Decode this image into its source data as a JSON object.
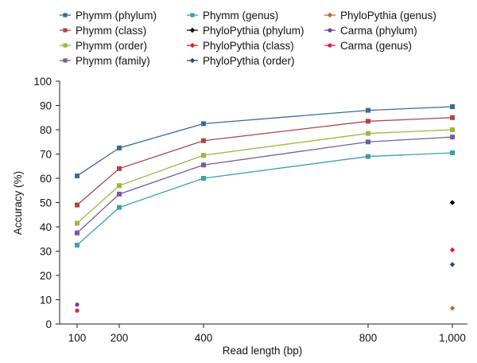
{
  "chart_data": {
    "type": "line",
    "xlabel": "Read length (bp)",
    "ylabel": "Accuracy (%)",
    "x": [
      100,
      200,
      400,
      800,
      1000
    ],
    "x_tick_labels": [
      "100",
      "200",
      "400",
      "800",
      "1,000"
    ],
    "ylim": [
      0,
      100
    ],
    "y_ticks": [
      0,
      10,
      20,
      30,
      40,
      50,
      60,
      70,
      80,
      90,
      100
    ],
    "y_tick_labels": [
      "0",
      "10",
      "20",
      "30",
      "40",
      "50",
      "60",
      "70",
      "80",
      "90",
      "100"
    ],
    "grid": false,
    "legend_placement": "top",
    "series": [
      {
        "name": "Phymm (phylum)",
        "color": "#3a6b98",
        "marker": "square",
        "values": [
          61,
          72.5,
          82.5,
          88,
          89.5
        ]
      },
      {
        "name": "Phymm (class)",
        "color": "#b04545",
        "marker": "square",
        "values": [
          49,
          64,
          75.5,
          83.5,
          85
        ]
      },
      {
        "name": "Phymm (order)",
        "color": "#9ab83d",
        "marker": "square",
        "values": [
          41.5,
          57,
          69.5,
          78.5,
          80
        ]
      },
      {
        "name": "Phymm (family)",
        "color": "#7a5a9a",
        "marker": "square",
        "values": [
          37.5,
          53.5,
          65.5,
          75,
          77
        ]
      },
      {
        "name": "Phymm (genus)",
        "color": "#3aa0b0",
        "marker": "square",
        "values": [
          32.5,
          48,
          60,
          69,
          70.5
        ]
      },
      {
        "name": "PhyloPythia (phylum)",
        "color": "#000000",
        "marker": "diamond",
        "points": [
          [
            1000,
            50
          ]
        ]
      },
      {
        "name": "PhyloPythia (class)",
        "color": "#e02020",
        "marker": "diamond",
        "points": [
          [
            1000,
            30.5
          ]
        ]
      },
      {
        "name": "PhyloPythia (order)",
        "color": "#1a4e80",
        "marker": "diamond",
        "points": [
          [
            1000,
            24.5
          ]
        ]
      },
      {
        "name": "PhyloPythia (genus)",
        "color": "#c06a28",
        "marker": "diamond",
        "points": [
          [
            1000,
            6.5
          ]
        ]
      },
      {
        "name": "Carma (phylum)",
        "color": "#7a3aa0",
        "marker": "circle",
        "points": [
          [
            100,
            8
          ]
        ]
      },
      {
        "name": "Carma (genus)",
        "color": "#e0204a",
        "marker": "circle",
        "points": [
          [
            100,
            5.5
          ]
        ]
      }
    ]
  }
}
